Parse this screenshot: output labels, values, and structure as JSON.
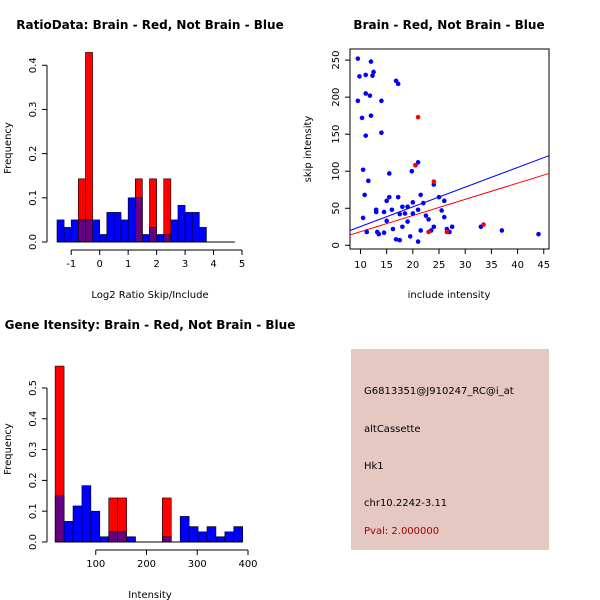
{
  "colors": {
    "brain": "#ff0000",
    "not_brain": "#0000ff",
    "overlap": "#660080"
  },
  "chart_data": [
    {
      "type": "histogram",
      "title": "RatioData: Brain - Red, Not Brain - Blue",
      "xlabel": "Log2 Ratio Skip/Include",
      "ylabel": "Frequency",
      "xlim": [
        -1.5,
        5
      ],
      "ylim": [
        0,
        0.43
      ],
      "xticks": [
        "-1",
        "0",
        "1",
        "2",
        "3",
        "4",
        "5"
      ],
      "xtick_values": [
        -1,
        0,
        1,
        2,
        3,
        4,
        5
      ],
      "yticks": [
        "0.0",
        "0.1",
        "0.2",
        "0.3",
        "0.4"
      ],
      "ytick_values": [
        0,
        0.1,
        0.2,
        0.3,
        0.4
      ],
      "bin_edges": [
        -1.5,
        -1.25,
        -1.0,
        -0.75,
        -0.5,
        -0.25,
        0.0,
        0.25,
        0.5,
        0.75,
        1.0,
        1.25,
        1.5,
        1.75,
        2.0,
        2.25,
        2.5,
        2.75,
        3.0,
        3.25,
        3.5,
        3.75,
        4.0,
        4.25,
        4.5,
        4.75
      ],
      "series": [
        {
          "name": "Not Brain",
          "color": "blue",
          "values": [
            0.05,
            0.033,
            0.05,
            0.05,
            0.05,
            0.05,
            0.017,
            0.067,
            0.067,
            0.05,
            0.1,
            0.1,
            0.017,
            0.033,
            0.017,
            0.017,
            0.05,
            0.083,
            0.067,
            0.067,
            0.033,
            0,
            0,
            0,
            0
          ]
        },
        {
          "name": "Brain",
          "color": "red",
          "values": [
            0,
            0,
            0,
            0.143,
            0.429,
            0,
            0,
            0,
            0,
            0,
            0,
            0.143,
            0,
            0.143,
            0,
            0.143,
            0,
            0,
            0,
            0,
            0,
            0,
            0,
            0,
            0
          ]
        }
      ]
    },
    {
      "type": "scatter",
      "title": "Brain - Red, Not Brain - Blue",
      "xlabel": "include intensity",
      "ylabel": "skip intensity",
      "xlim": [
        8,
        46
      ],
      "ylim": [
        -5,
        265
      ],
      "xticks": [
        "10",
        "15",
        "20",
        "25",
        "30",
        "35",
        "40",
        "45"
      ],
      "xtick_values": [
        10,
        15,
        20,
        25,
        30,
        35,
        40,
        45
      ],
      "yticks": [
        "0",
        "50",
        "100",
        "150",
        "200",
        "250"
      ],
      "ytick_values": [
        0,
        50,
        100,
        150,
        200,
        250
      ],
      "series": [
        {
          "name": "Not Brain",
          "color": "blue",
          "points": [
            [
              9.5,
              252
            ],
            [
              9.8,
              228
            ],
            [
              9.5,
              195
            ],
            [
              10.3,
              172
            ],
            [
              10.5,
              102
            ],
            [
              10.8,
              68
            ],
            [
              10.5,
              37
            ],
            [
              11,
              230
            ],
            [
              11,
              205
            ],
            [
              11,
              148
            ],
            [
              11.2,
              18
            ],
            [
              11.5,
              87
            ],
            [
              11.8,
              202
            ],
            [
              12,
              248
            ],
            [
              12,
              175
            ],
            [
              12.3,
              229
            ],
            [
              12.5,
              234
            ],
            [
              13,
              48
            ],
            [
              13,
              45
            ],
            [
              13.2,
              18
            ],
            [
              13.5,
              15
            ],
            [
              14,
              152
            ],
            [
              14,
              195
            ],
            [
              14.5,
              17
            ],
            [
              14.5,
              45
            ],
            [
              15,
              60
            ],
            [
              15,
              33
            ],
            [
              15.5,
              97
            ],
            [
              15.5,
              65
            ],
            [
              16,
              48
            ],
            [
              16.2,
              22
            ],
            [
              16.8,
              222
            ],
            [
              16.8,
              8
            ],
            [
              17.2,
              218
            ],
            [
              17.2,
              65
            ],
            [
              17.5,
              7
            ],
            [
              17.5,
              42
            ],
            [
              18,
              52
            ],
            [
              18,
              25
            ],
            [
              18.5,
              43
            ],
            [
              19,
              52
            ],
            [
              19,
              32
            ],
            [
              19.5,
              12
            ],
            [
              19.8,
              100
            ],
            [
              20,
              58
            ],
            [
              20,
              43
            ],
            [
              20.5,
              108
            ],
            [
              21,
              112
            ],
            [
              21,
              48
            ],
            [
              21,
              5
            ],
            [
              21.5,
              68
            ],
            [
              21.5,
              20
            ],
            [
              22,
              57
            ],
            [
              22.5,
              40
            ],
            [
              23,
              35
            ],
            [
              23.5,
              20
            ],
            [
              24,
              82
            ],
            [
              24,
              25
            ],
            [
              25,
              65
            ],
            [
              25.5,
              47
            ],
            [
              26,
              60
            ],
            [
              26,
              38
            ],
            [
              26.5,
              22
            ],
            [
              27,
              18
            ],
            [
              27.5,
              25
            ],
            [
              33,
              25
            ],
            [
              37,
              20
            ],
            [
              44,
              15
            ]
          ]
        },
        {
          "name": "Brain",
          "color": "red",
          "points": [
            [
              20.5,
              108
            ],
            [
              21,
              173
            ],
            [
              24,
              86
            ],
            [
              23,
              18
            ],
            [
              26.5,
              18
            ],
            [
              33.5,
              28
            ]
          ]
        }
      ],
      "fit_lines": [
        {
          "name": "Not Brain fit",
          "color": "blue",
          "x": [
            8,
            46
          ],
          "y": [
            20,
            121
          ]
        },
        {
          "name": "Brain fit",
          "color": "red",
          "x": [
            8,
            46
          ],
          "y": [
            14,
            97
          ]
        }
      ]
    },
    {
      "type": "histogram",
      "title": "Gene Itensity: Brain - Red, Not Brain - Blue",
      "xlabel": "Intensity",
      "ylabel": "Frequency",
      "xlim": [
        0,
        400
      ],
      "ylim": [
        0,
        0.62
      ],
      "xticks": [
        "100",
        "200",
        "300",
        "400"
      ],
      "xtick_values": [
        100,
        200,
        300,
        400
      ],
      "yticks": [
        "0.0",
        "0.1",
        "0.2",
        "0.3",
        "0.4",
        "0.5"
      ],
      "ytick_values": [
        0,
        0.1,
        0.2,
        0.3,
        0.4,
        0.5
      ],
      "bin_edges": [
        20,
        37.6,
        55.2,
        72.8,
        90.4,
        108,
        125.6,
        143.2,
        160.8,
        178.4,
        196,
        213.6,
        231.2,
        248.8,
        266.4,
        284,
        301.6,
        319.2,
        336.8,
        354.4,
        372,
        389.6
      ],
      "series": [
        {
          "name": "Not Brain",
          "color": "blue",
          "values": [
            0.15,
            0.067,
            0.117,
            0.183,
            0.1,
            0.017,
            0.033,
            0.033,
            0.017,
            0,
            0,
            0,
            0.017,
            0,
            0.083,
            0.05,
            0.033,
            0.05,
            0.017,
            0.033,
            0.05
          ]
        },
        {
          "name": "Brain",
          "color": "red",
          "values": [
            0.571,
            0,
            0,
            0,
            0,
            0,
            0.143,
            0.143,
            0,
            0,
            0,
            0,
            0.143,
            0,
            0,
            0,
            0,
            0,
            0,
            0,
            0
          ]
        }
      ]
    }
  ],
  "info_panel": {
    "probe": "G6813351@J910247_RC@i_at",
    "event_type": "altCassette",
    "gene": "Hk1",
    "location": "chr10.2242-3.11",
    "pval": "Pval: 2.000000"
  }
}
